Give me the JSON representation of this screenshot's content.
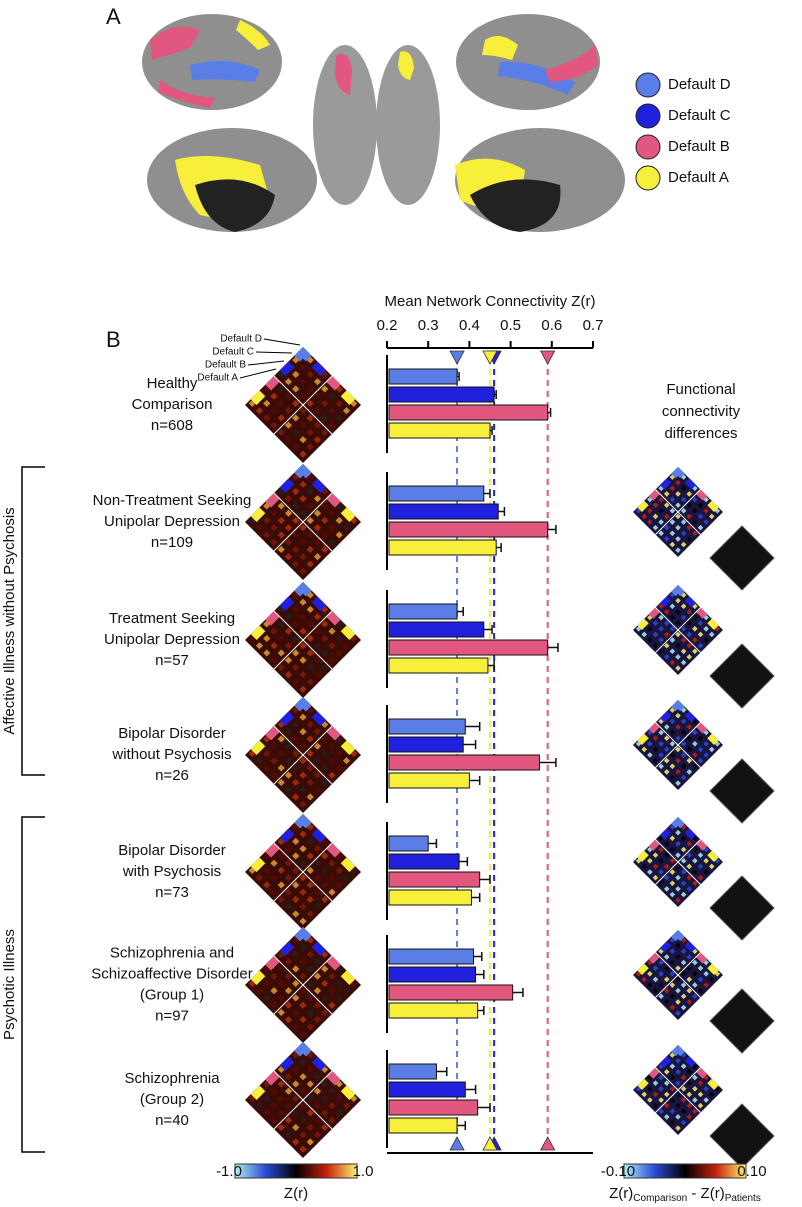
{
  "panel_a": {
    "letter": "A"
  },
  "chart_data": {
    "type": "bar",
    "orientation": "horizontal",
    "panel_letter": "B",
    "title": "Mean Network Connectivity Z(r)",
    "categories": [
      [
        "Healthy",
        "Comparison"
      ],
      [
        "Non-Treatment Seeking",
        "Unipolar Depression"
      ],
      [
        "Treatment Seeking",
        "Unipolar Depression"
      ],
      [
        "Bipolar Disorder",
        "without Psychosis"
      ],
      [
        "Bipolar Disorder",
        "with Psychosis"
      ],
      [
        "Schizophrenia and",
        "Schizoaffective Disorder",
        "(Group 1)"
      ],
      [
        "Schizophrenia",
        "(Group 2)"
      ]
    ],
    "sample_sizes": [
      "n=608",
      "n=109",
      "n=57",
      "n=26",
      "n=73",
      "n=97",
      "n=40"
    ],
    "series": [
      {
        "name": "Default D",
        "color": "#5b7ee6",
        "values": [
          0.37,
          0.435,
          0.37,
          0.39,
          0.3,
          0.41,
          0.32
        ],
        "errors": [
          0.005,
          0.015,
          0.015,
          0.035,
          0.02,
          0.02,
          0.025
        ]
      },
      {
        "name": "Default C",
        "color": "#2020dd",
        "values": [
          0.46,
          0.47,
          0.435,
          0.385,
          0.375,
          0.415,
          0.39
        ],
        "errors": [
          0.005,
          0.015,
          0.02,
          0.03,
          0.02,
          0.02,
          0.025
        ]
      },
      {
        "name": "Default B",
        "color": "#e2577f",
        "values": [
          0.59,
          0.59,
          0.59,
          0.57,
          0.425,
          0.505,
          0.42
        ],
        "errors": [
          0.007,
          0.02,
          0.025,
          0.04,
          0.025,
          0.025,
          0.03
        ]
      },
      {
        "name": "Default A",
        "color": "#f7ef3a",
        "values": [
          0.45,
          0.465,
          0.445,
          0.4,
          0.405,
          0.42,
          0.37
        ],
        "errors": [
          0.005,
          0.012,
          0.015,
          0.025,
          0.02,
          0.015,
          0.02
        ]
      }
    ],
    "xlim": [
      0.2,
      0.7
    ],
    "xticks": [
      0.2,
      0.3,
      0.4,
      0.5,
      0.6,
      0.7
    ],
    "reference_lines": true,
    "brackets": [
      "Affective Illness without Psychosis",
      "Psychotic Illness"
    ],
    "difference_title": [
      "Functional",
      "connectivity",
      "differences"
    ],
    "colorbars": [
      {
        "min": "-1.0",
        "max": "1.0",
        "label": "Z(r)"
      },
      {
        "min": "-0.10",
        "max": "0.10",
        "label": "Z(r)",
        "sub1": "Comparison",
        "middle": " - Z(r)",
        "sub2": "Patients"
      }
    ]
  }
}
